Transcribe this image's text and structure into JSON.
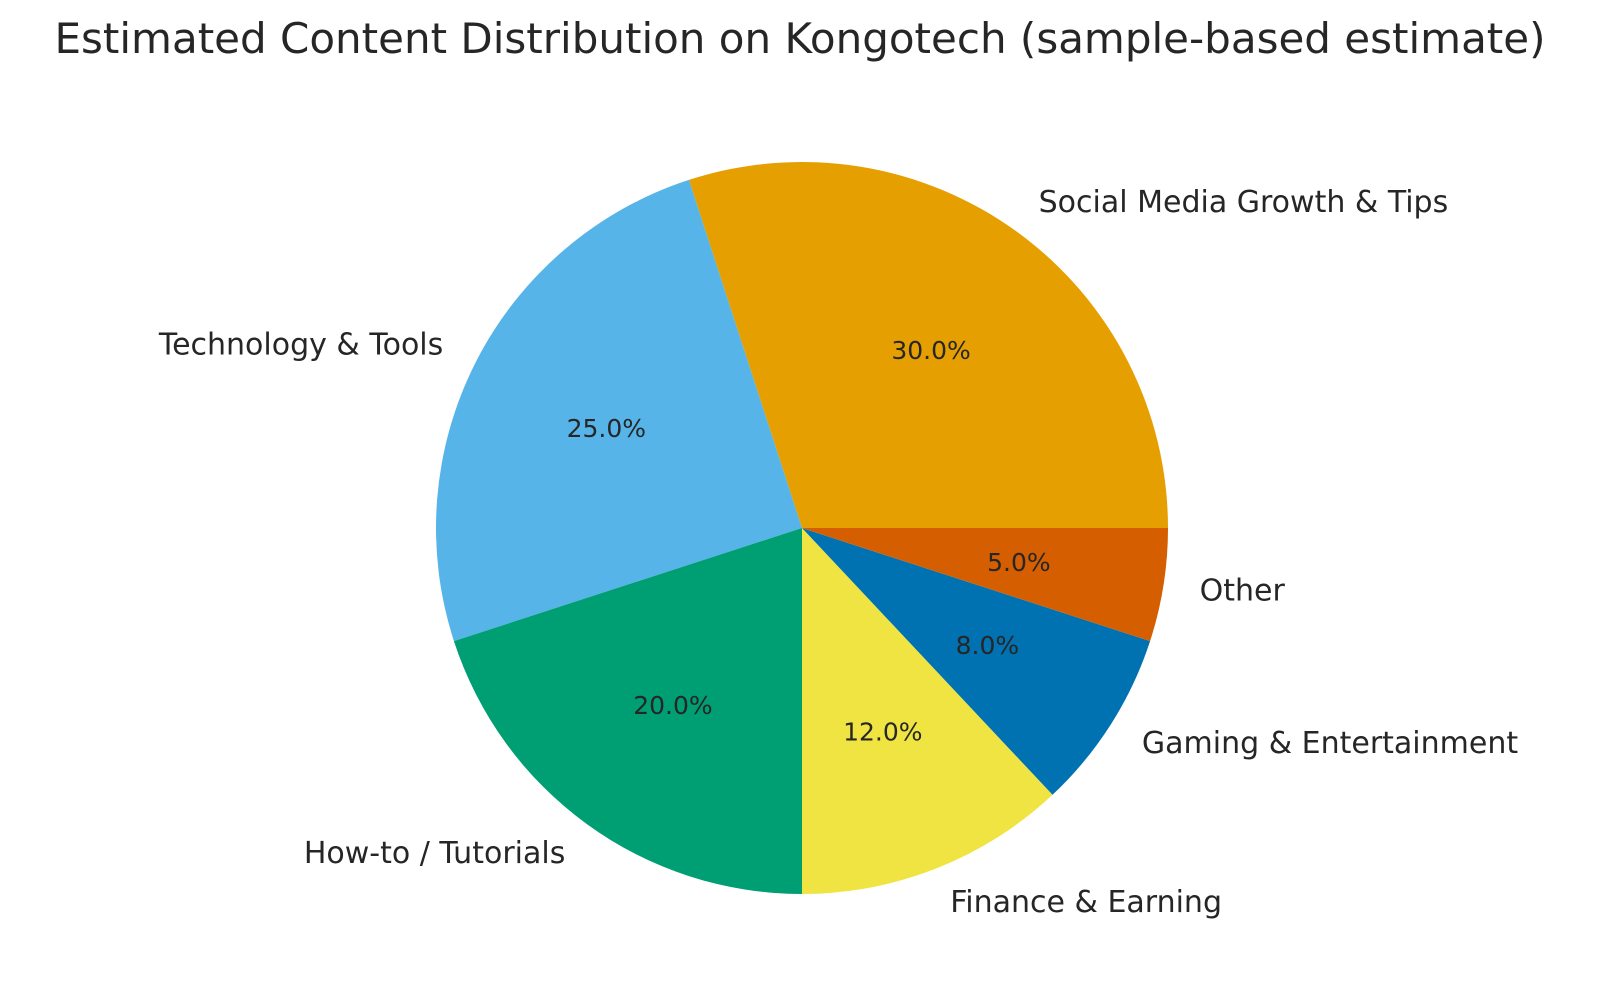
{
  "chart_data": {
    "type": "pie",
    "title": "Estimated Content Distribution on Kongotech (sample-based estimate)",
    "slices": [
      {
        "label": "Social Media Growth & Tips",
        "value": 30.0,
        "pct_label": "30.0%",
        "color": "#E69F00"
      },
      {
        "label": "Technology & Tools",
        "value": 25.0,
        "pct_label": "25.0%",
        "color": "#56B4E9"
      },
      {
        "label": "How-to / Tutorials",
        "value": 20.0,
        "pct_label": "20.0%",
        "color": "#009E73"
      },
      {
        "label": "Finance & Earning",
        "value": 12.0,
        "pct_label": "12.0%",
        "color": "#F0E442"
      },
      {
        "label": "Gaming & Entertainment",
        "value": 8.0,
        "pct_label": "8.0%",
        "color": "#0072B2"
      },
      {
        "label": "Other",
        "value": 5.0,
        "pct_label": "5.0%",
        "color": "#D55E00"
      }
    ],
    "start_angle_deg": 0,
    "direction": "counterclockwise",
    "legend": "none"
  }
}
